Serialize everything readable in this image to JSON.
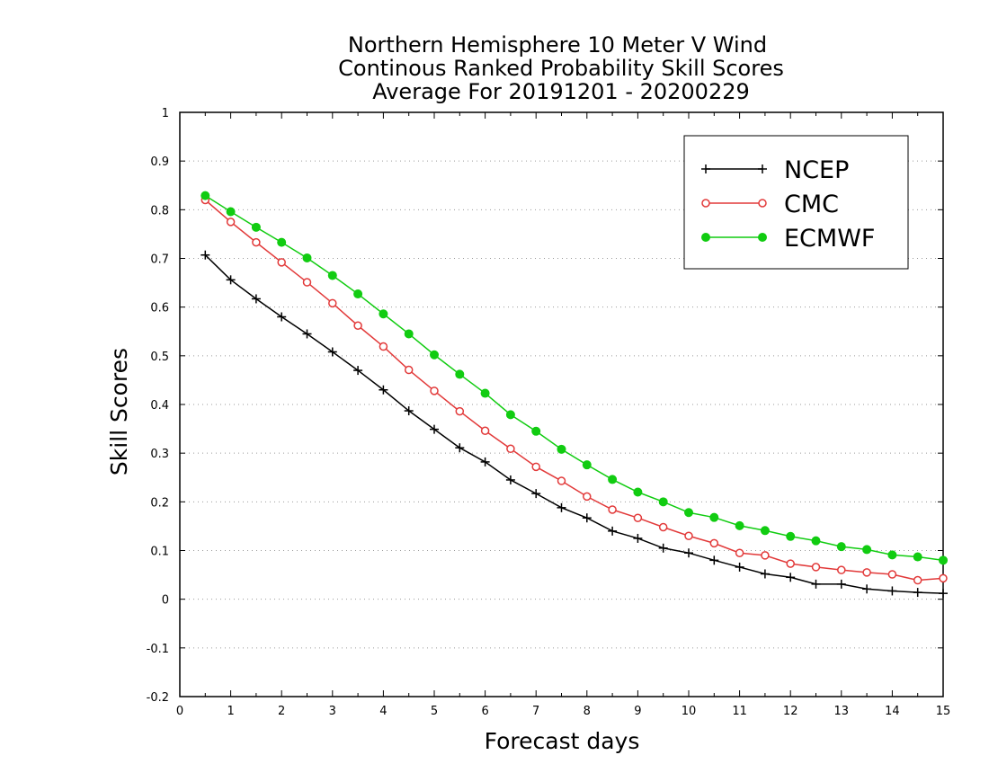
{
  "chart_data": {
    "type": "line",
    "title": [
      "Northern Hemisphere 10 Meter V Wind",
      "Continous Ranked Probability Skill Scores",
      "Average For 20191201 - 20200229"
    ],
    "xlabel": "Forecast days",
    "ylabel": "Skill Scores",
    "xlim": [
      0,
      15
    ],
    "ylim": [
      -0.2,
      1
    ],
    "xticks": [
      0,
      1,
      2,
      3,
      4,
      5,
      6,
      7,
      8,
      9,
      10,
      11,
      12,
      13,
      14,
      15
    ],
    "xtick_labels": [
      "0",
      "1",
      "2",
      "3",
      "4",
      "5",
      "6",
      "7",
      "8",
      "9",
      "10",
      "11",
      "12",
      "13",
      "14",
      "15"
    ],
    "yticks": [
      -0.2,
      -0.1,
      0,
      0.1,
      0.2,
      0.3,
      0.4,
      0.5,
      0.6,
      0.7,
      0.8,
      0.9,
      1
    ],
    "ytick_labels": [
      "-0.2",
      "-0.1",
      "0",
      "0.1",
      "0.2",
      "0.3",
      "0.4",
      "0.5",
      "0.6",
      "0.7",
      "0.8",
      "0.9",
      "1"
    ],
    "grid": "horizontal dotted",
    "legend_position": "top-right",
    "x": [
      0.5,
      1,
      1.5,
      2,
      2.5,
      3,
      3.5,
      4,
      4.5,
      5,
      5.5,
      6,
      6.5,
      7,
      7.5,
      8,
      8.5,
      9,
      9.5,
      10,
      10.5,
      11,
      11.5,
      12,
      12.5,
      13,
      13.5,
      14,
      14.5,
      15
    ],
    "series": [
      {
        "name": "NCEP",
        "color": "#000000",
        "marker": "plus",
        "values": [
          0.707,
          0.656,
          0.617,
          0.58,
          0.545,
          0.508,
          0.47,
          0.43,
          0.387,
          0.349,
          0.311,
          0.282,
          0.245,
          0.217,
          0.188,
          0.167,
          0.14,
          0.125,
          0.105,
          0.095,
          0.08,
          0.066,
          0.052,
          0.045,
          0.031,
          0.031,
          0.021,
          0.017,
          0.014,
          0.012
        ]
      },
      {
        "name": "CMC",
        "color": "#e23a3a",
        "marker": "open-circle",
        "values": [
          0.82,
          0.775,
          0.733,
          0.692,
          0.651,
          0.608,
          0.562,
          0.519,
          0.471,
          0.428,
          0.386,
          0.346,
          0.309,
          0.272,
          0.243,
          0.211,
          0.184,
          0.167,
          0.148,
          0.13,
          0.115,
          0.095,
          0.09,
          0.073,
          0.066,
          0.06,
          0.055,
          0.051,
          0.039,
          0.043
        ]
      },
      {
        "name": "ECMWF",
        "color": "#11cc11",
        "marker": "filled-circle",
        "values": [
          0.829,
          0.796,
          0.764,
          0.733,
          0.701,
          0.665,
          0.627,
          0.586,
          0.545,
          0.502,
          0.462,
          0.423,
          0.379,
          0.345,
          0.308,
          0.276,
          0.246,
          0.22,
          0.2,
          0.178,
          0.168,
          0.151,
          0.141,
          0.129,
          0.12,
          0.108,
          0.102,
          0.091,
          0.087,
          0.08
        ]
      }
    ]
  }
}
